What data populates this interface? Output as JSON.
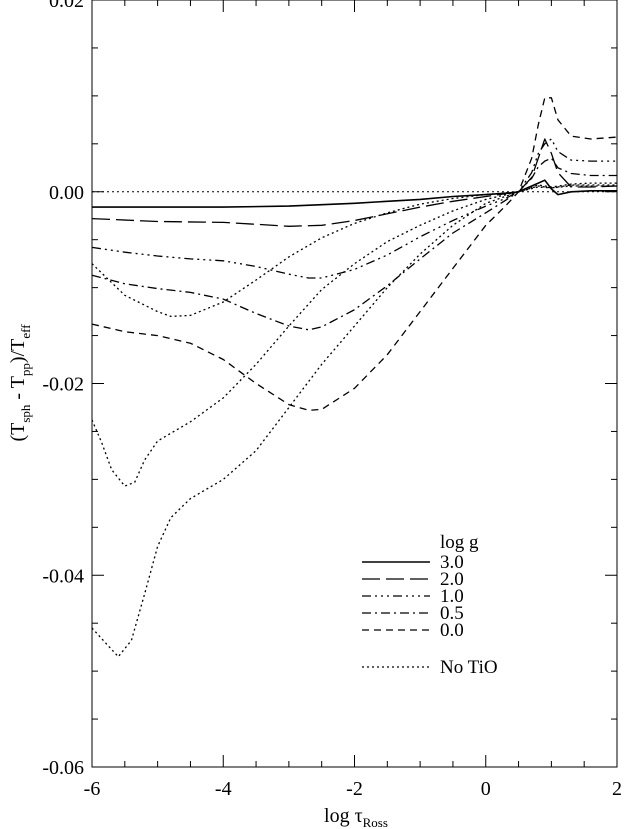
{
  "chart_data": {
    "type": "line",
    "xlabel": "log τ",
    "xlabel_sub": "Ross",
    "ylabel": {
      "parts": [
        "(T",
        "sph",
        " - T",
        "pp",
        ")/T",
        "eff"
      ]
    },
    "xlim": [
      -6,
      2
    ],
    "ylim": [
      -0.06,
      0.02
    ],
    "x_ticks": [
      -6,
      -4,
      -2,
      0,
      2
    ],
    "x_tick_labels": [
      "-6",
      "-4",
      "-2",
      "0",
      "2"
    ],
    "y_ticks": [
      0.02,
      0.0,
      -0.02,
      -0.04,
      -0.06
    ],
    "y_tick_labels": [
      "0.02",
      "0.00",
      "-0.02",
      "-0.04",
      "-0.06"
    ],
    "grid": false,
    "legend": {
      "title": "log g",
      "placement": "bottom-right",
      "entries": [
        "3.0",
        "2.0",
        "1.0",
        "0.5",
        "0.0",
        "No TiO"
      ],
      "dashes": [
        "",
        "18,6",
        "9,4,2,4,2,4,2,4",
        "9,4,2,4",
        "7,5",
        "2,3"
      ]
    },
    "reference_line": {
      "y": 0.0,
      "dash": "2,3"
    },
    "series": [
      {
        "name": "3.0",
        "dash": "",
        "tio": true,
        "x": [
          -6,
          -5.5,
          -5,
          -4,
          -3,
          -2,
          -1.5,
          -1,
          -0.5,
          0,
          0.2,
          0.4,
          0.5,
          0.6,
          0.7,
          0.8,
          0.9,
          1.0,
          1.1,
          1.3,
          1.6,
          2
        ],
        "y": [
          -0.0016,
          -0.0016,
          -0.0016,
          -0.0016,
          -0.0015,
          -0.0012,
          -0.001,
          -0.0008,
          -0.0005,
          -0.0003,
          -0.0002,
          -0.0001,
          0.0,
          0.0003,
          0.0006,
          0.0009,
          0.0012,
          0.0003,
          -0.0003,
          0.0,
          0.0001,
          0.0001
        ]
      },
      {
        "name": "2.0",
        "dash": "18,6",
        "tio": true,
        "x": [
          -6,
          -5,
          -4,
          -3.5,
          -3,
          -2.5,
          -2,
          -1.5,
          -1,
          -0.5,
          0,
          0.3,
          0.5,
          0.7,
          0.8,
          0.9,
          1.0,
          1.1,
          1.3,
          1.6,
          2
        ],
        "y": [
          -0.0028,
          -0.0031,
          -0.0032,
          -0.0034,
          -0.0036,
          -0.0035,
          -0.003,
          -0.0023,
          -0.0016,
          -0.001,
          -0.0005,
          -0.0002,
          0.0,
          0.0015,
          0.0035,
          0.0055,
          0.004,
          0.002,
          0.0005,
          0.0005,
          0.0006
        ]
      },
      {
        "name": "1.0",
        "dash": "9,4,2,4,2,4,2,4",
        "tio": true,
        "x": [
          -6,
          -5.5,
          -5,
          -4.5,
          -4,
          -3.5,
          -3,
          -2.7,
          -2.5,
          -2,
          -1.5,
          -1,
          -0.5,
          0,
          0.3,
          0.5,
          0.7,
          0.8,
          0.9,
          1.0,
          1.1,
          1.3,
          1.6,
          2
        ],
        "y": [
          -0.0058,
          -0.0063,
          -0.0067,
          -0.007,
          -0.0072,
          -0.0078,
          -0.0086,
          -0.009,
          -0.009,
          -0.0081,
          -0.0066,
          -0.0047,
          -0.003,
          -0.0015,
          -0.0007,
          0.0,
          0.002,
          0.004,
          0.005,
          0.0055,
          0.0042,
          0.0033,
          0.0032,
          0.0032
        ]
      },
      {
        "name": "0.5",
        "dash": "9,4,2,4",
        "tio": true,
        "x": [
          -6,
          -5.5,
          -5,
          -4.5,
          -4,
          -3.5,
          -3,
          -2.7,
          -2.5,
          -2,
          -1.5,
          -1,
          -0.5,
          0,
          0.3,
          0.5,
          0.7,
          0.8,
          0.9,
          1.0,
          1.1,
          1.3,
          1.6,
          2
        ],
        "y": [
          -0.0087,
          -0.0096,
          -0.0101,
          -0.0105,
          -0.0112,
          -0.0127,
          -0.014,
          -0.0144,
          -0.0141,
          -0.0123,
          -0.0098,
          -0.007,
          -0.0043,
          -0.0022,
          -0.0009,
          0.0,
          0.0014,
          0.0026,
          0.0032,
          0.0035,
          0.0025,
          0.0019,
          0.0017,
          0.0017
        ]
      },
      {
        "name": "0.0",
        "dash": "7,5",
        "tio": true,
        "x": [
          -6,
          -5.5,
          -5,
          -4.5,
          -4,
          -3.5,
          -3,
          -2.7,
          -2.5,
          -2,
          -1.5,
          -1,
          -0.5,
          0,
          0.3,
          0.5,
          0.7,
          0.8,
          0.9,
          1.0,
          1.1,
          1.3,
          1.6,
          2
        ],
        "y": [
          -0.0138,
          -0.0146,
          -0.015,
          -0.0158,
          -0.0175,
          -0.02,
          -0.0222,
          -0.0228,
          -0.0227,
          -0.0205,
          -0.017,
          -0.0125,
          -0.008,
          -0.0035,
          -0.0015,
          0.0,
          0.0035,
          0.007,
          0.0098,
          0.0098,
          0.0075,
          0.0058,
          0.0055,
          0.0057
        ]
      },
      {
        "name": "No TiO",
        "dash": "2,3",
        "tio": false,
        "x": [
          -6,
          -5.5,
          -5.0,
          -4.8,
          -4.5,
          -4.0,
          -3.5,
          -3.0,
          -2.5,
          -2,
          -1.5,
          -1,
          -0.5,
          0,
          0.5,
          0.8,
          1.0,
          1.3,
          1.6,
          2
        ],
        "y": [
          -0.0075,
          -0.0108,
          -0.0125,
          -0.013,
          -0.0129,
          -0.0115,
          -0.0092,
          -0.0068,
          -0.0048,
          -0.0033,
          -0.0022,
          -0.0013,
          -0.0007,
          -0.0003,
          0.0,
          0.0007,
          0.0005,
          0.0008,
          0.0009,
          0.0009
        ]
      },
      {
        "name": "No TiO",
        "dash": "2,3",
        "tio": false,
        "x": [
          -6,
          -5.85,
          -5.7,
          -5.5,
          -5.35,
          -5.2,
          -5.0,
          -4.5,
          -4.0,
          -3.5,
          -3.0,
          -2.5,
          -2.0,
          -1.5,
          -1.0,
          -0.5,
          0.0,
          0.5,
          0.8,
          1.0,
          1.3,
          1.6,
          2
        ],
        "y": [
          -0.0238,
          -0.0262,
          -0.029,
          -0.0307,
          -0.0303,
          -0.028,
          -0.026,
          -0.024,
          -0.0215,
          -0.018,
          -0.014,
          -0.0102,
          -0.0075,
          -0.0052,
          -0.0035,
          -0.002,
          -0.0008,
          0.0,
          0.0006,
          0.0004,
          0.0007,
          0.0007,
          0.0007
        ]
      },
      {
        "name": "No TiO",
        "dash": "2,3",
        "tio": false,
        "x": [
          -6,
          -5.8,
          -5.6,
          -5.4,
          -5.2,
          -5.0,
          -4.8,
          -4.5,
          -4.0,
          -3.5,
          -3.0,
          -2.5,
          -2.0,
          -1.5,
          -1.0,
          -0.5,
          0.0,
          0.5,
          0.8,
          1.0,
          1.3,
          1.6,
          2
        ],
        "y": [
          -0.0455,
          -0.047,
          -0.0485,
          -0.0468,
          -0.042,
          -0.037,
          -0.034,
          -0.032,
          -0.03,
          -0.027,
          -0.0225,
          -0.018,
          -0.014,
          -0.01,
          -0.0065,
          -0.0035,
          -0.0012,
          0.0,
          0.0005,
          0.0004,
          0.0006,
          0.0006,
          0.0006
        ]
      }
    ]
  }
}
